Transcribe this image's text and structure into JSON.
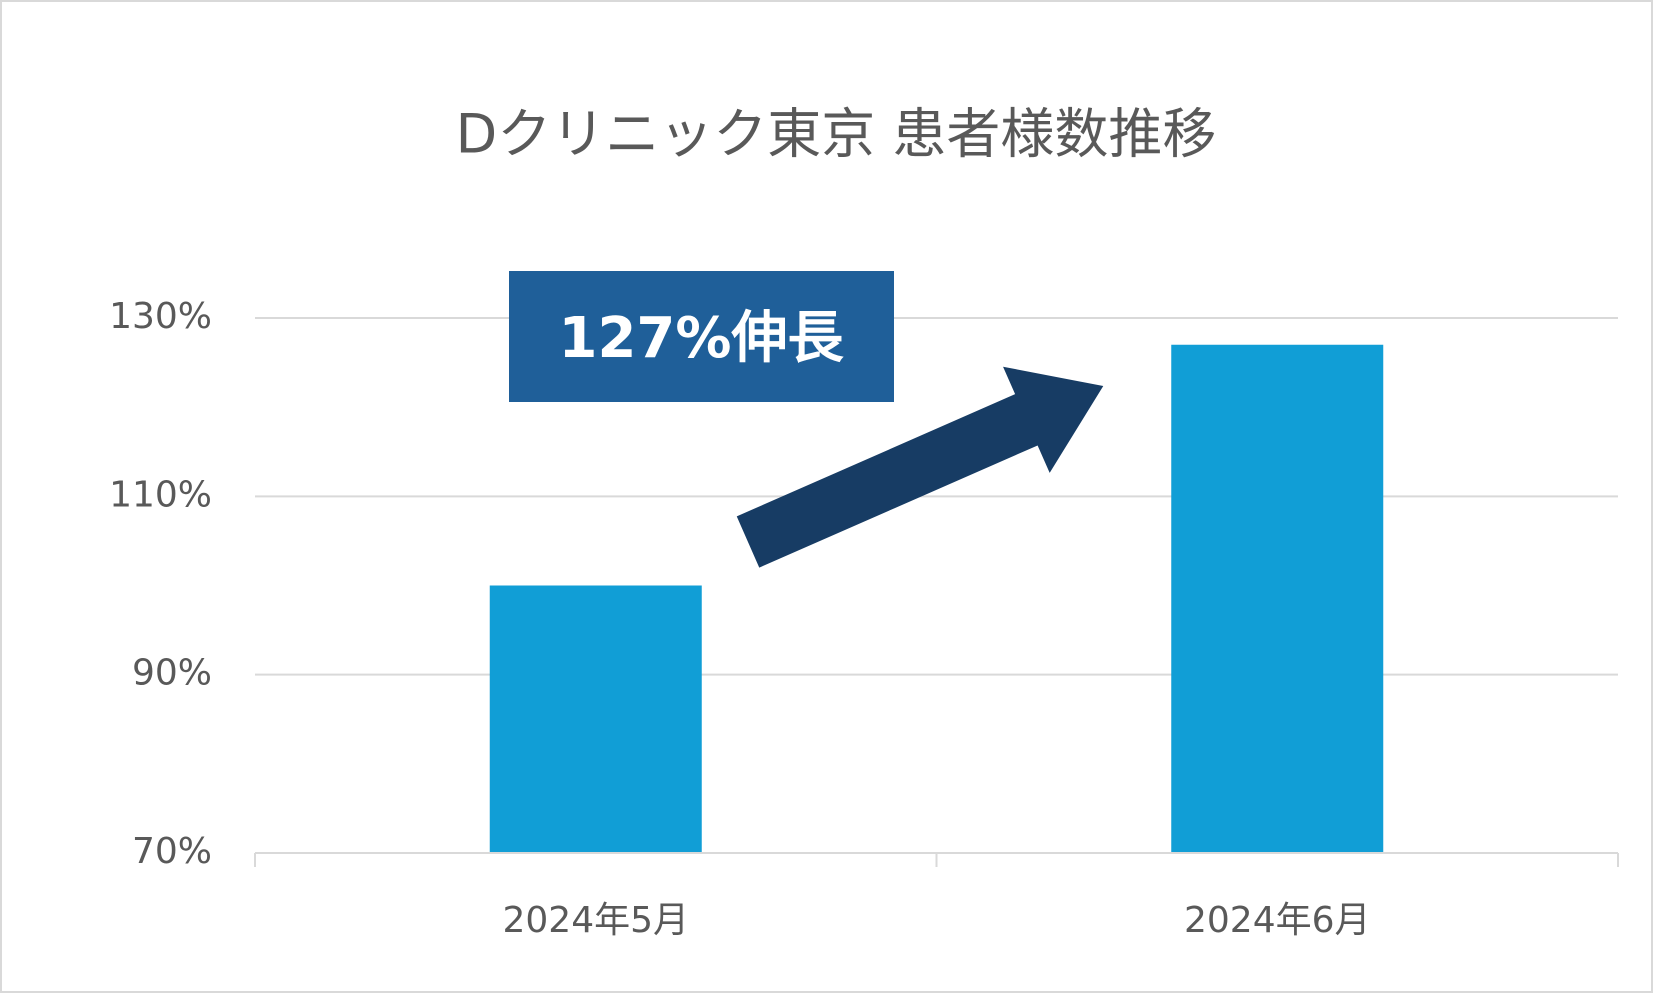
{
  "chart_data": {
    "type": "bar",
    "title": "Dクリニック東京 患者様数推移",
    "categories": [
      "2024年5月",
      "2024年6月"
    ],
    "values": [
      100,
      127
    ],
    "color": "#119ed6",
    "ylim": [
      70,
      130
    ],
    "yticks": [
      {
        "value": 70,
        "label": "70%"
      },
      {
        "value": 90,
        "label": "90%"
      },
      {
        "value": 110,
        "label": "110%"
      },
      {
        "value": 130,
        "label": "130%"
      }
    ],
    "grid": true,
    "annotation": "127%伸長"
  }
}
